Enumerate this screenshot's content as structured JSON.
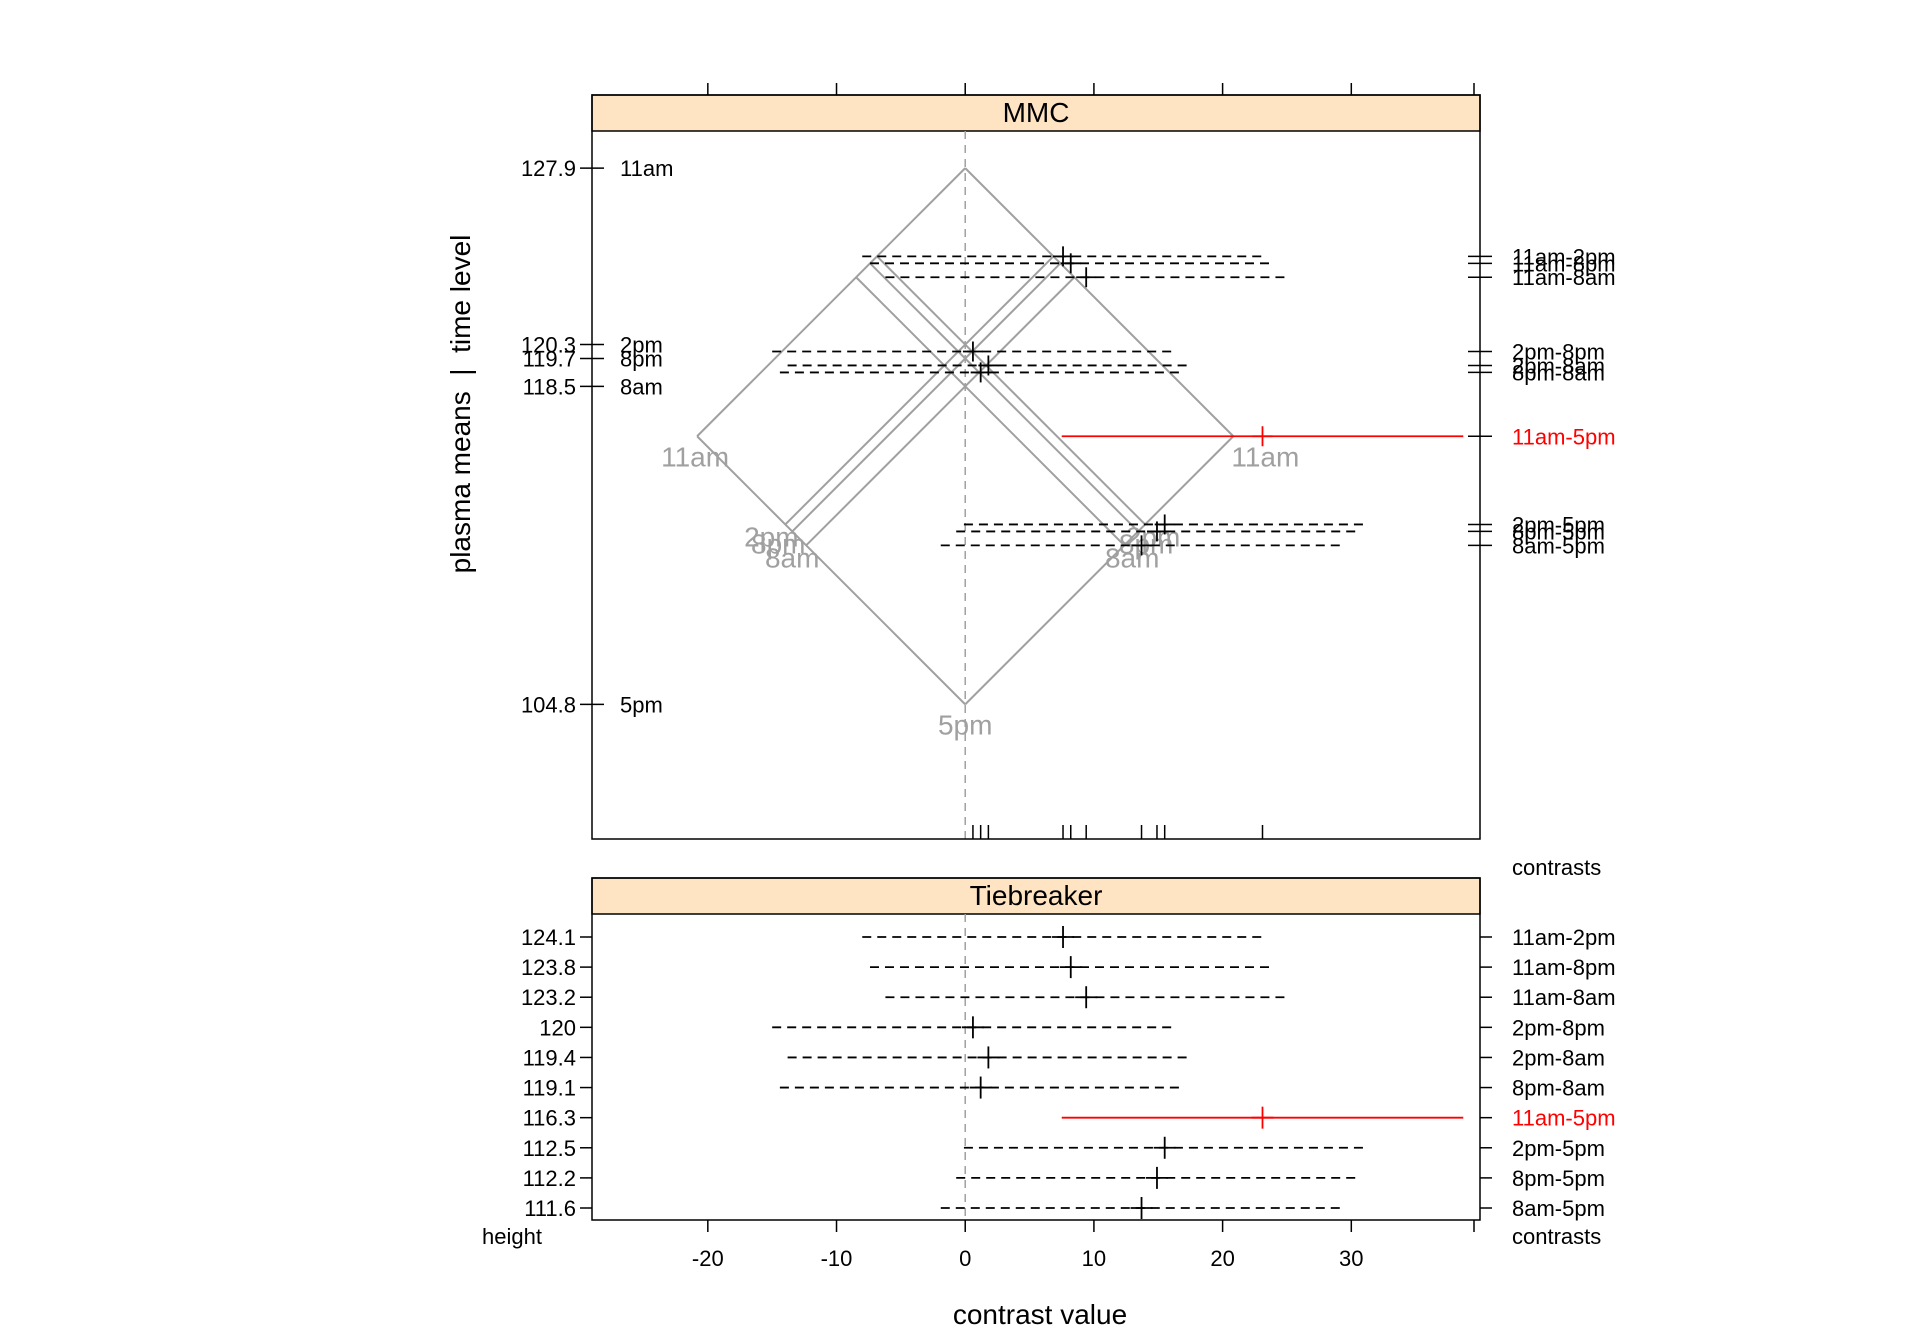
{
  "chart_data": {
    "type": "mmc",
    "xlabel": "contrast value",
    "ylabel": "plasma means  |  time level",
    "xlim": [
      -29,
      40
    ],
    "xticks": [
      -20,
      -10,
      0,
      10,
      20,
      30
    ],
    "mmc_panel": {
      "strip": "MMC",
      "ylim": [
        99.0,
        129.5
      ],
      "right_caption": "contrasts",
      "levels": [
        {
          "name": "11am",
          "mean": 127.9,
          "mean_label": "127.9"
        },
        {
          "name": "2pm",
          "mean": 120.3,
          "mean_label": "120.3"
        },
        {
          "name": "8pm",
          "mean": 119.7,
          "mean_label": "119.7"
        },
        {
          "name": "8am",
          "mean": 118.5,
          "mean_label": "118.5"
        },
        {
          "name": "5pm",
          "mean": 104.8,
          "mean_label": "104.8"
        }
      ]
    },
    "tiebreaker_panel": {
      "strip": "Tiebreaker",
      "left_caption": "height",
      "right_caption": "contrasts"
    },
    "contrasts": [
      {
        "name": "11am-2pm",
        "height_label": "124.1",
        "estimate": 7.6,
        "lower": -8.0,
        "upper": 23.2,
        "significant": false
      },
      {
        "name": "11am-8pm",
        "height_label": "123.8",
        "estimate": 8.2,
        "lower": -7.4,
        "upper": 23.8,
        "significant": false
      },
      {
        "name": "11am-8am",
        "height_label": "123.2",
        "estimate": 9.4,
        "lower": -6.2,
        "upper": 25.0,
        "significant": false
      },
      {
        "name": "2pm-8pm",
        "height_label": "120",
        "estimate": 0.6,
        "lower": -15.0,
        "upper": 16.2,
        "significant": false
      },
      {
        "name": "2pm-8am",
        "height_label": "119.4",
        "estimate": 1.8,
        "lower": -13.8,
        "upper": 17.4,
        "significant": false
      },
      {
        "name": "8pm-8am",
        "height_label": "119.1",
        "estimate": 1.2,
        "lower": -14.4,
        "upper": 16.8,
        "significant": false
      },
      {
        "name": "11am-5pm",
        "height_label": "116.3",
        "estimate": 23.1,
        "lower": 7.5,
        "upper": 38.7,
        "significant": true
      },
      {
        "name": "2pm-5pm",
        "height_label": "112.5",
        "estimate": 15.5,
        "lower": -0.1,
        "upper": 31.1,
        "significant": false
      },
      {
        "name": "8pm-5pm",
        "height_label": "112.2",
        "estimate": 14.9,
        "lower": -0.7,
        "upper": 30.5,
        "significant": false
      },
      {
        "name": "8am-5pm",
        "height_label": "111.6",
        "estimate": 13.7,
        "lower": -1.9,
        "upper": 29.3,
        "significant": false
      }
    ],
    "colors": {
      "strip": "#FFE4C4",
      "diamond": "#A0A0A0",
      "significant": "#FF0000",
      "interval": "#000000",
      "zero_line": "#A0A0A0"
    }
  }
}
